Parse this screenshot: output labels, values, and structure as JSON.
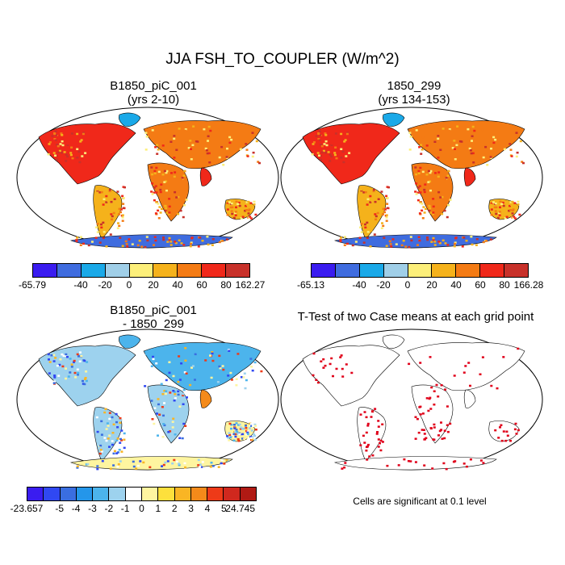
{
  "title": "JJA FSH_TO_COUPLER (W/m^2)",
  "panels": {
    "top_left": {
      "line1": "B1850_piC_001",
      "line2": "(yrs 2-10)"
    },
    "top_right": {
      "line1": "1850_299",
      "line2": "(yrs 134-153)"
    },
    "bottom_left": {
      "line1": "B1850_piC_001",
      "line2": "- 1850_299"
    },
    "bottom_right": {
      "line1": "T-Test of two Case means at each grid point"
    }
  },
  "colorbars": {
    "top_left": {
      "labels": [
        "-65.79",
        "-40",
        "-20",
        "0",
        "20",
        "40",
        "60",
        "80",
        "162.27"
      ],
      "colors": [
        "#3a1cf0",
        "#3f6cdf",
        "#1aa9e8",
        "#a0cfe8",
        "#fcef7a",
        "#f5b21b",
        "#f47b14",
        "#f0281a",
        "#c8312a"
      ]
    },
    "top_right": {
      "labels": [
        "-65.13",
        "-40",
        "-20",
        "0",
        "20",
        "40",
        "60",
        "80",
        "166.28"
      ],
      "colors": [
        "#3a1cf0",
        "#3f6cdf",
        "#1aa9e8",
        "#a0cfe8",
        "#fcef7a",
        "#f5b21b",
        "#f47b14",
        "#f0281a",
        "#c8312a"
      ]
    },
    "bottom_left": {
      "labels": [
        "-23.657",
        "-5",
        "-4",
        "-3",
        "-2",
        "-1",
        "0",
        "1",
        "2",
        "3",
        "4",
        "5",
        "24.745"
      ],
      "colors": [
        "#3a1cf0",
        "#3048f2",
        "#3a6ee0",
        "#2496ea",
        "#4cb4ec",
        "#9dd2ee",
        "#ffffff",
        "#fef5a0",
        "#fde03c",
        "#f9b524",
        "#f48a1a",
        "#ee3a18",
        "#d0281e",
        "#b01a14"
      ]
    }
  },
  "note": "Cells are significant at 0.1 level",
  "colors": {
    "ocean": "#ffffff",
    "land_outline": "#000000",
    "significant": "#e0001a"
  }
}
